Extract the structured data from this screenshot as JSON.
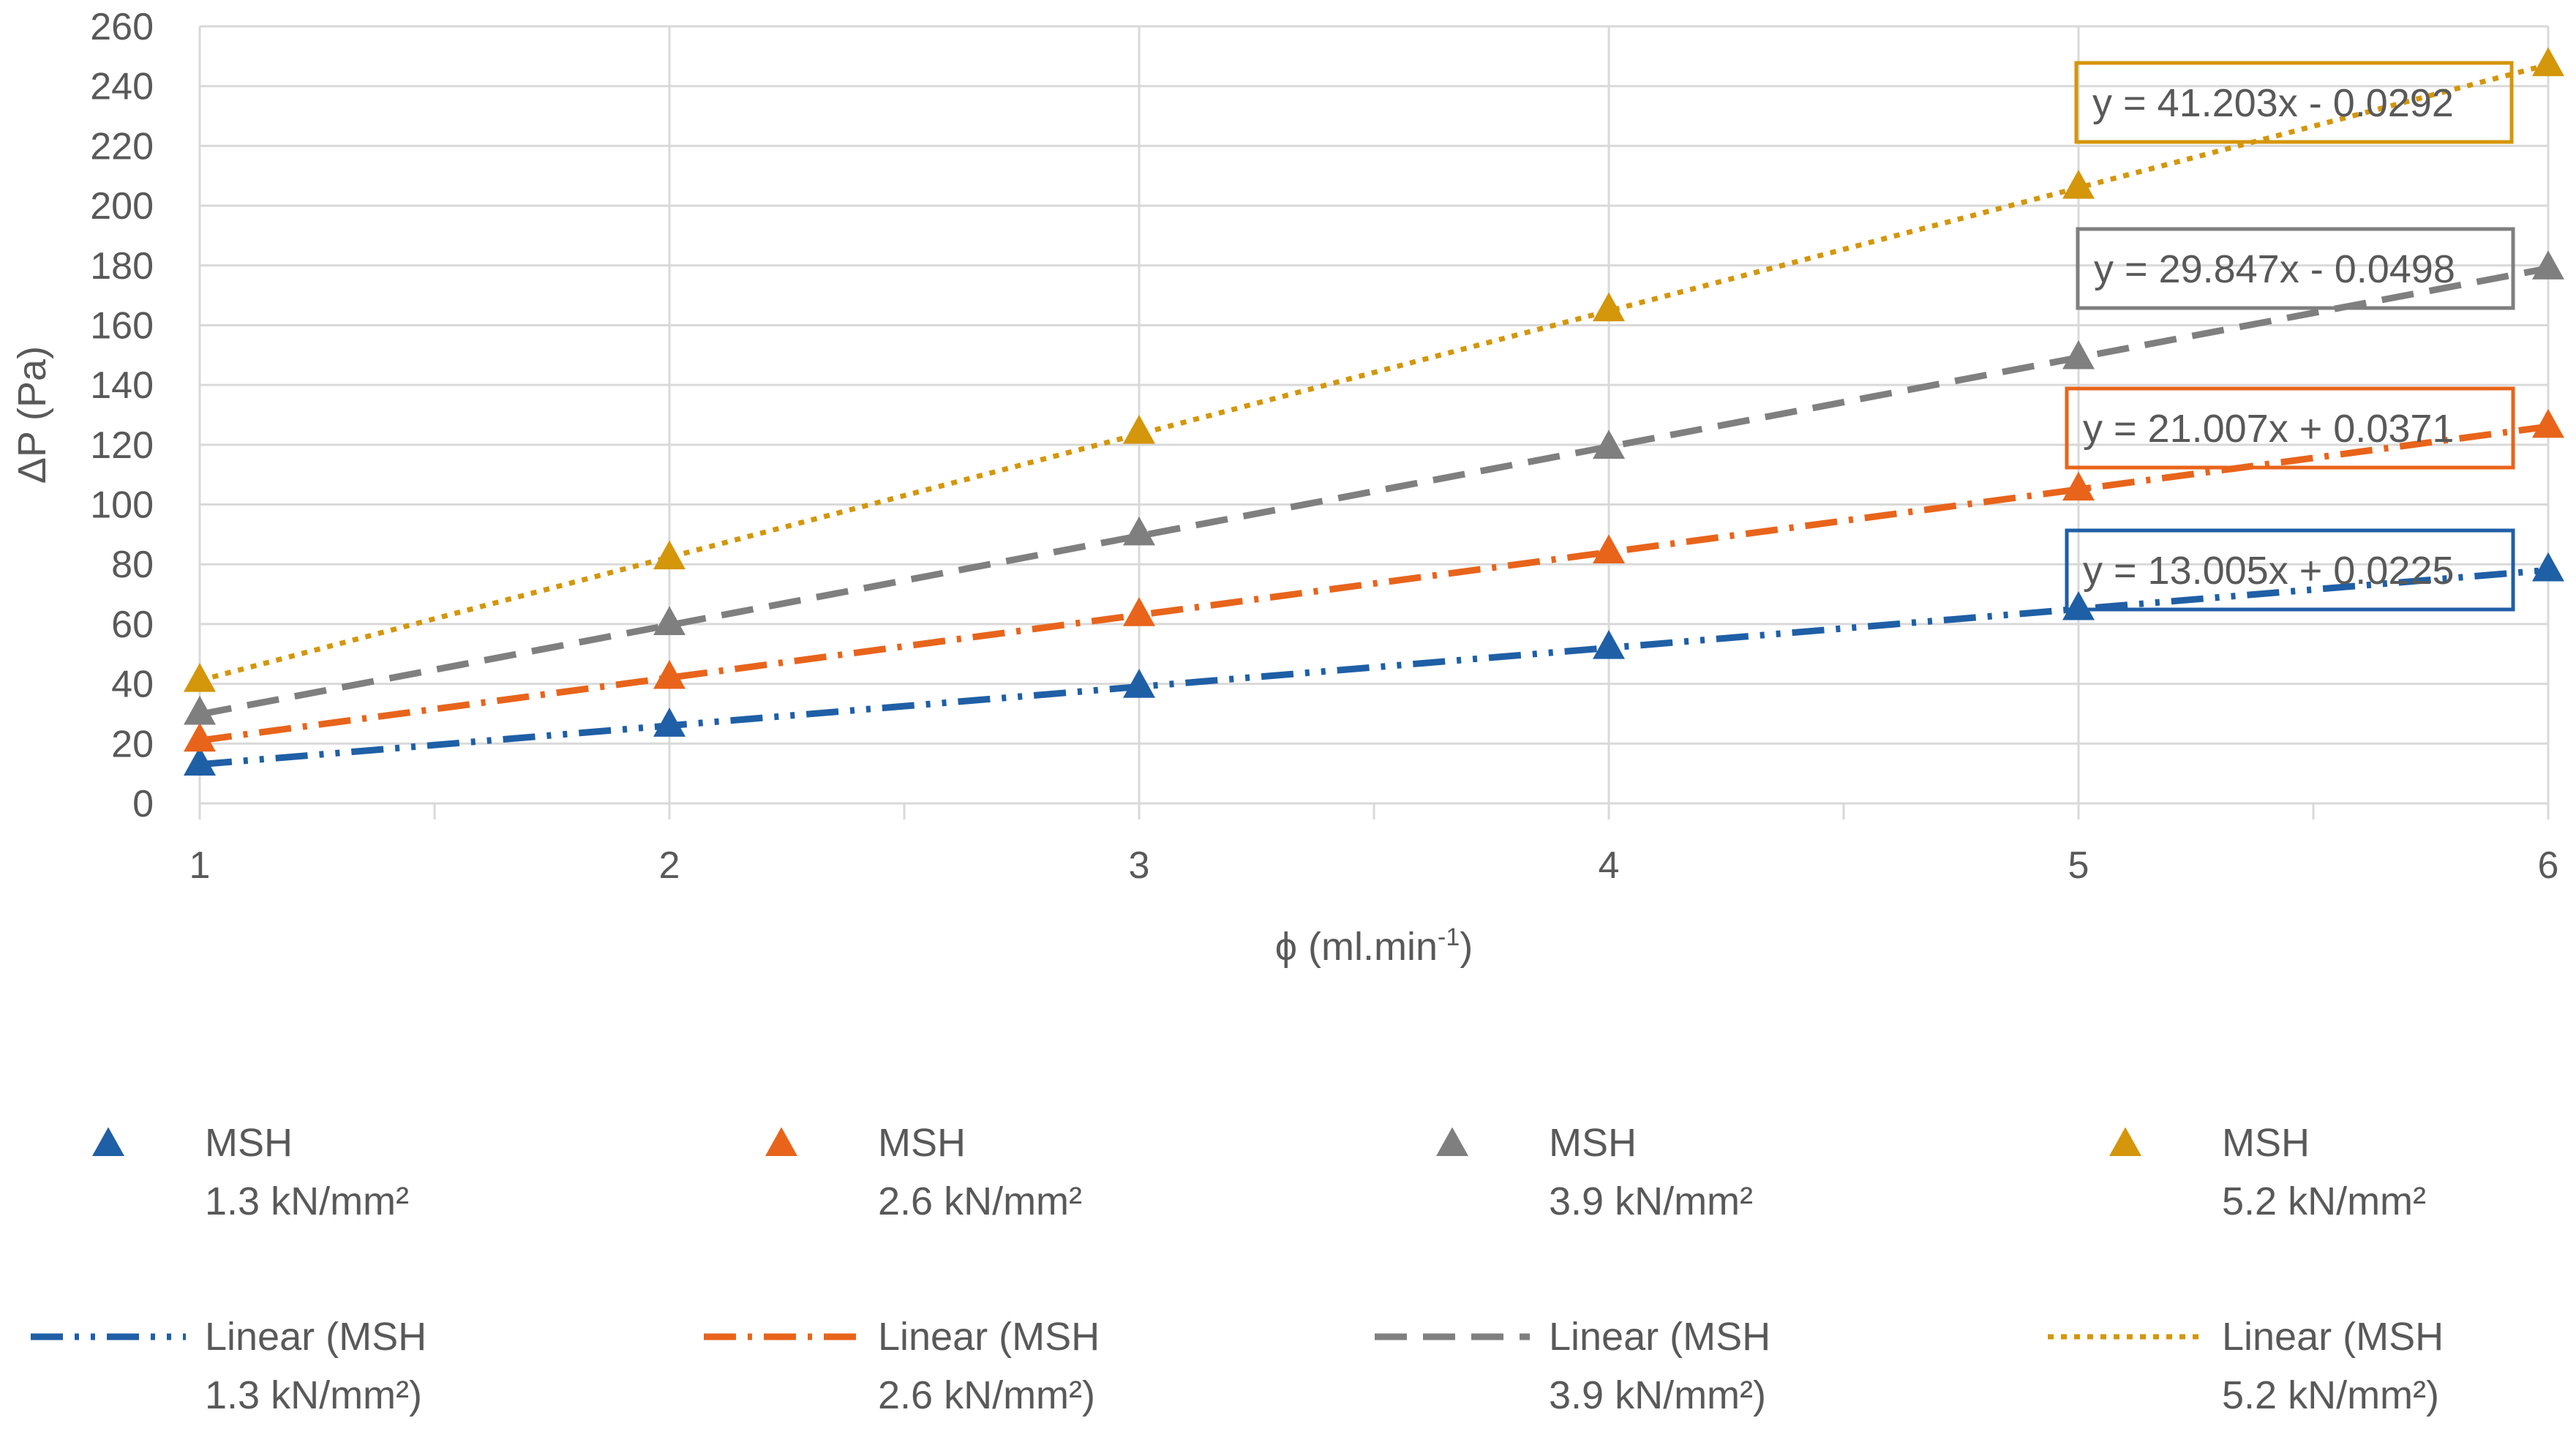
{
  "chart_data": {
    "type": "scatter",
    "title": "",
    "xlabel": "ϕ (ml.min",
    "xlabel_sup": "-1",
    "xlabel_end": ")",
    "ylabel": "ΔP (Pa)",
    "xlim": [
      1,
      6
    ],
    "ylim": [
      0,
      260
    ],
    "x_ticks": [
      "1",
      "2",
      "3",
      "4",
      "5",
      "6"
    ],
    "y_ticks": [
      "0",
      "20",
      "40",
      "60",
      "80",
      "100",
      "120",
      "140",
      "160",
      "180",
      "200",
      "220",
      "240",
      "260"
    ],
    "grid": true,
    "legend_position": "bottom",
    "series": [
      {
        "name_line1": "MSH",
        "name_line2": "1.3 kN/mm²",
        "color": "#1F5FA6",
        "marker": "triangle",
        "x": [
          1,
          2,
          3,
          4,
          5,
          6
        ],
        "y": [
          13,
          26,
          39,
          52,
          65,
          78
        ],
        "trendline": {
          "label_line1": "Linear (MSH",
          "label_line2": "1.3 kN/mm²)",
          "slope": 13.005,
          "intercept": 0.0225,
          "dash": "long-dash-dot-dot",
          "equation": "y = 13.005x + 0.0225"
        }
      },
      {
        "name_line1": "MSH",
        "name_line2": "2.6 kN/mm²",
        "color": "#E8641B",
        "marker": "triangle",
        "x": [
          1,
          2,
          3,
          4,
          5,
          6
        ],
        "y": [
          21,
          42,
          63,
          84,
          105,
          126
        ],
        "trendline": {
          "label_line1": "Linear (MSH",
          "label_line2": "2.6 kN/mm²)",
          "slope": 21.007,
          "intercept": 0.0371,
          "dash": "long-dash-dot",
          "equation": "y = 21.007x + 0.0371"
        }
      },
      {
        "name_line1": "MSH",
        "name_line2": "3.9 kN/mm²",
        "color": "#7F7F7F",
        "marker": "triangle",
        "x": [
          1,
          2,
          3,
          4,
          5,
          6
        ],
        "y": [
          30,
          60,
          90,
          119,
          149,
          179
        ],
        "trendline": {
          "label_line1": "Linear (MSH",
          "label_line2": "3.9 kN/mm²)",
          "slope": 29.847,
          "intercept": -0.0498,
          "dash": "dash",
          "equation": "y = 29.847x - 0.0498"
        }
      },
      {
        "name_line1": "MSH",
        "name_line2": "5.2 kN/mm²",
        "color": "#D4960A",
        "marker": "triangle",
        "x": [
          1,
          2,
          3,
          4,
          5,
          6
        ],
        "y": [
          41,
          82,
          124,
          165,
          206,
          247
        ],
        "trendline": {
          "label_line1": "Linear (MSH",
          "label_line2": "5.2 kN/mm²)",
          "slope": 41.203,
          "intercept": -0.0292,
          "dash": "dot",
          "equation": "y = 41.203x - 0.0292"
        }
      }
    ]
  }
}
